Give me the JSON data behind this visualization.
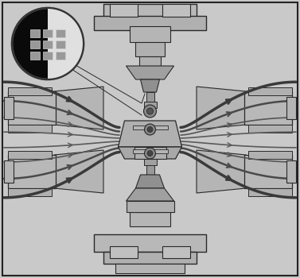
{
  "bg_color": "#c9c9c9",
  "dark": "#2a2a2a",
  "mid": "#888888",
  "light": "#d0d0d0",
  "valve_gray": "#a8a8a8",
  "flow_dark": "#555555",
  "inset_bg": "#0a0a0a",
  "figsize": [
    3.77,
    3.5
  ],
  "dpi": 100,
  "xlim": [
    0,
    377
  ],
  "ylim": [
    0,
    350
  ]
}
